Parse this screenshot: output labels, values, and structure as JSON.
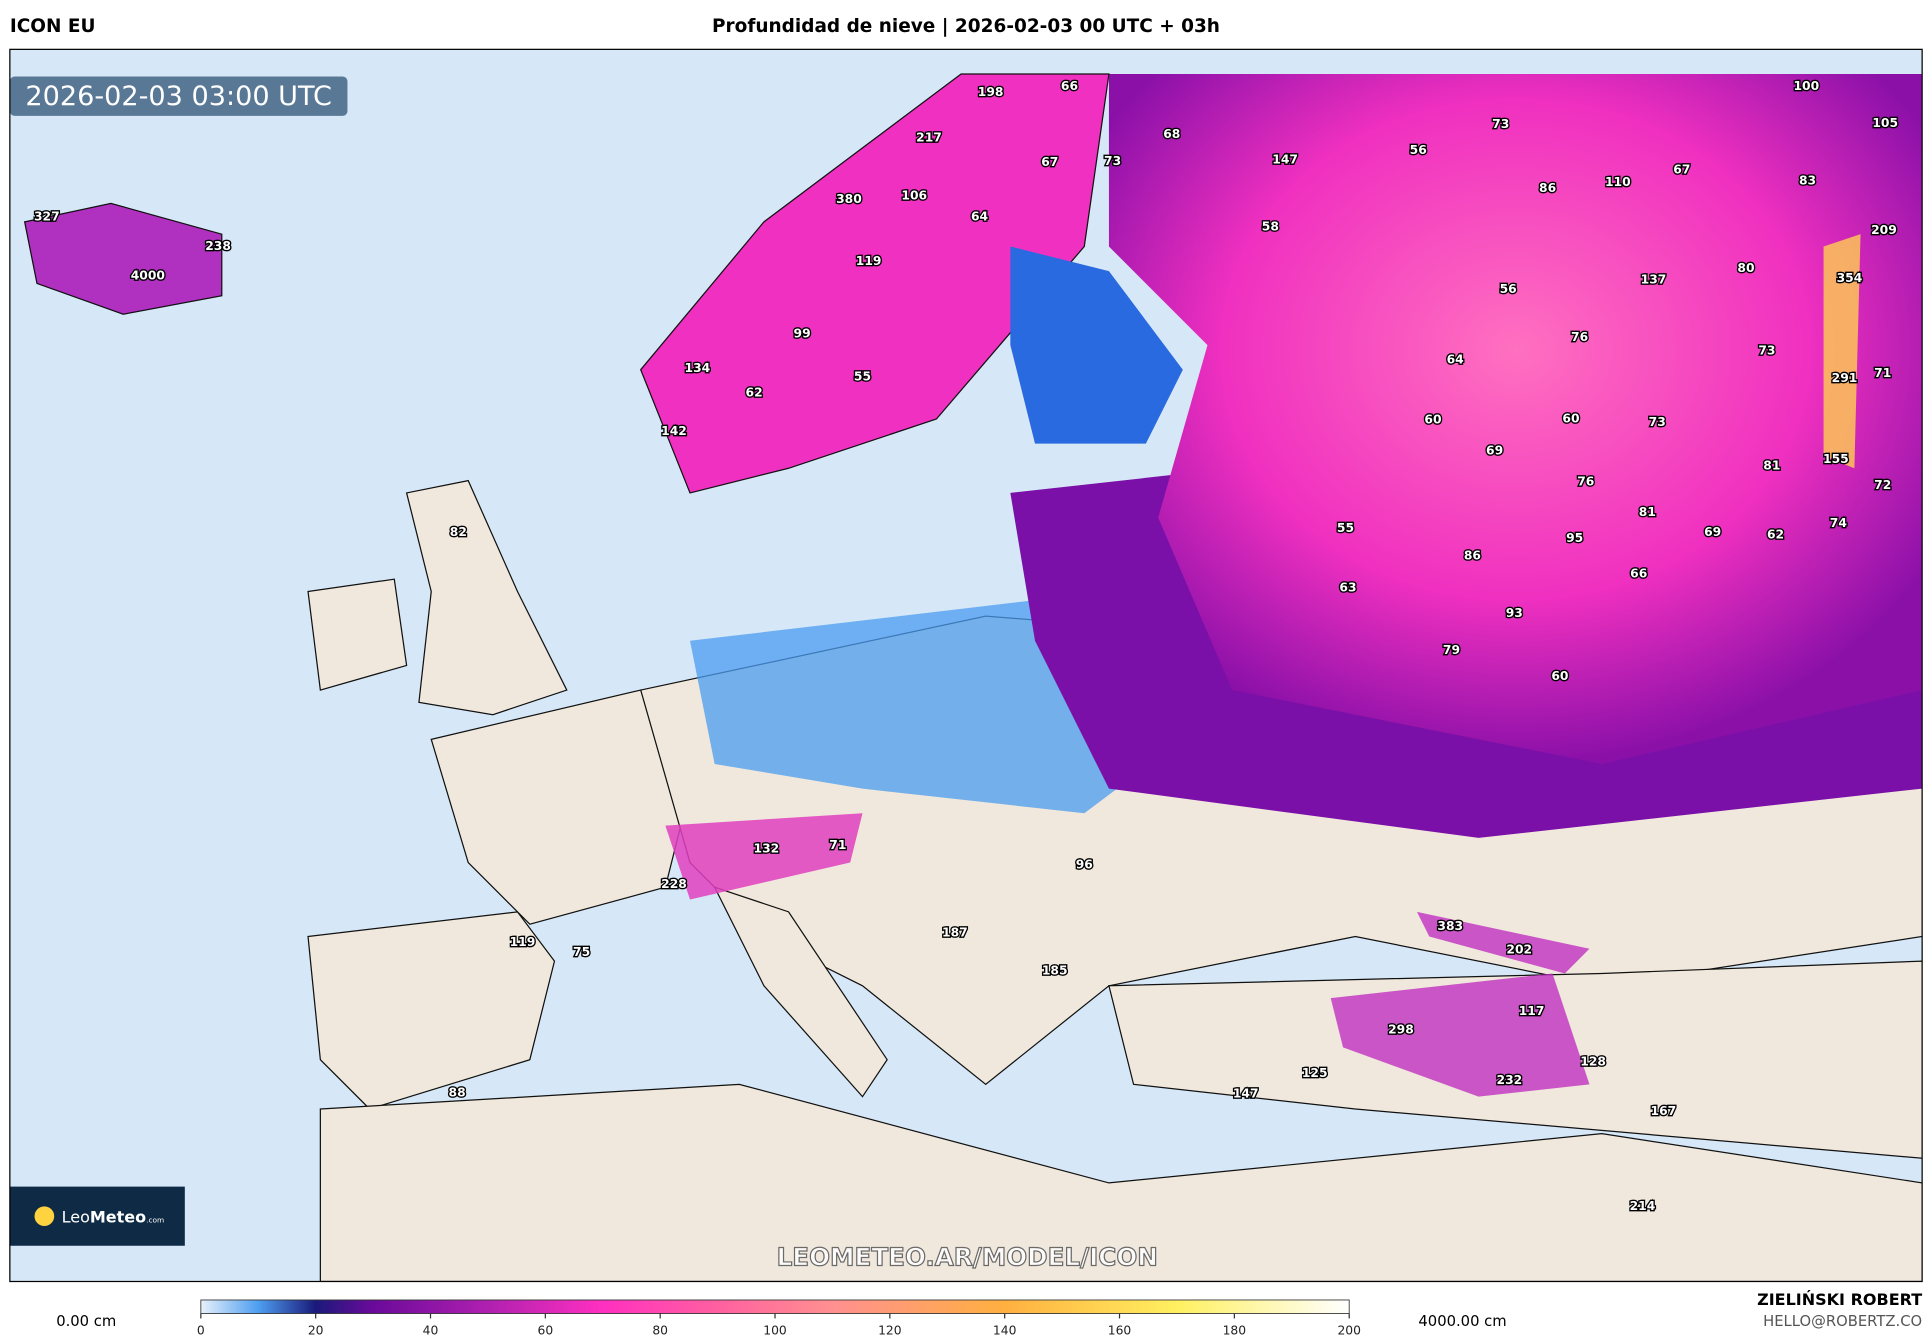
{
  "header": {
    "model": "ICON EU",
    "title": "Profundidad de nieve | 2026-02-03 00 UTC + 03h"
  },
  "map": {
    "timestamp": "2026-02-03 03:00 UTC",
    "watermark": "LEOMETEO.AR/MODEL/ICON",
    "logo": {
      "name_light": "Leo",
      "name_bold": "Meteo",
      "suffix": ".com"
    },
    "snow_depth_labels": [
      327,
      4000,
      238,
      198,
      66,
      217,
      68,
      67,
      73,
      147,
      380,
      106,
      64,
      58,
      56,
      73,
      119,
      99,
      134,
      55,
      62,
      142,
      82,
      100,
      105,
      86,
      110,
      67,
      83,
      209,
      80,
      137,
      354,
      56,
      76,
      64,
      73,
      291,
      71,
      60,
      60,
      73,
      69,
      81,
      155,
      76,
      72,
      55,
      81,
      95,
      69,
      62,
      74,
      86,
      66,
      63,
      93,
      79,
      60,
      132,
      71,
      228,
      96,
      119,
      75,
      187,
      185,
      383,
      202,
      117,
      298,
      128,
      232,
      125,
      147,
      167,
      88,
      214
    ]
  },
  "colorbar": {
    "min_label": "0.00 cm",
    "max_label": "4000.00 cm",
    "ticks": [
      0,
      20,
      40,
      60,
      80,
      100,
      120,
      140,
      160,
      180,
      200
    ]
  },
  "footer": {
    "author": "ZIELIŃSKI ROBERT",
    "email": "HELLO@ROBERTZ.CO"
  }
}
